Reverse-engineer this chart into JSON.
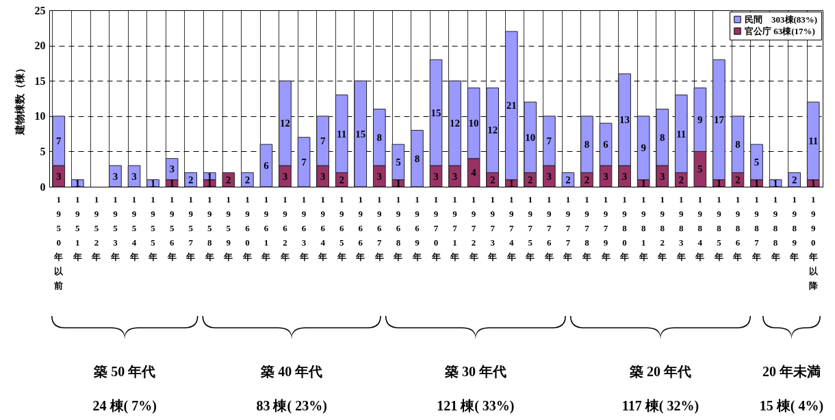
{
  "chart_data": {
    "type": "bar",
    "stacked": true,
    "ylabel": "建物棟数（棟）",
    "ylim": [
      0,
      25
    ],
    "yticks": [
      0,
      5,
      10,
      15,
      20,
      25
    ],
    "grid": true,
    "legend": "top right",
    "categories": [
      "1950年以前",
      "1951年",
      "1952年",
      "1953年",
      "1954年",
      "1955年",
      "1956年",
      "1957年",
      "1958年",
      "1959年",
      "1960年",
      "1961年",
      "1962年",
      "1963年",
      "1964年",
      "1965年",
      "1966年",
      "1967年",
      "1968年",
      "1969年",
      "1970年",
      "1971年",
      "1972年",
      "1973年",
      "1974年",
      "1975年",
      "1976年",
      "1977年",
      "1978年",
      "1979年",
      "1980年",
      "1981年",
      "1982年",
      "1983年",
      "1984年",
      "1985年",
      "1986年",
      "1987年",
      "1988年",
      "1989年",
      "1990年以降"
    ],
    "series": [
      {
        "name": "官公庁 63棟(17%)",
        "color": "#993366",
        "values": [
          3,
          0,
          0,
          0,
          0,
          0,
          1,
          0,
          1,
          2,
          0,
          0,
          3,
          0,
          3,
          2,
          0,
          3,
          1,
          0,
          3,
          3,
          4,
          2,
          1,
          2,
          3,
          0,
          2,
          3,
          3,
          1,
          3,
          2,
          5,
          1,
          2,
          1,
          0,
          0,
          1
        ],
        "value_labels": [
          "3",
          null,
          null,
          null,
          null,
          null,
          "1",
          null,
          "1",
          "2",
          null,
          null,
          "3",
          null,
          "3",
          "2",
          null,
          "3",
          "1",
          null,
          "3",
          "3",
          "4",
          "2",
          "1",
          "2",
          "3",
          null,
          "2",
          "3",
          "3",
          "1",
          "3",
          "2",
          "5",
          "1",
          "2",
          "1",
          null,
          null,
          "1"
        ]
      },
      {
        "name": "民間　303棟(83%)",
        "color": "#9999ff",
        "values": [
          7,
          1,
          0,
          3,
          3,
          1,
          3,
          2,
          1,
          0,
          2,
          6,
          12,
          7,
          7,
          11,
          15,
          8,
          5,
          8,
          15,
          12,
          10,
          12,
          21,
          10,
          7,
          2,
          8,
          6,
          13,
          9,
          8,
          11,
          9,
          17,
          8,
          5,
          1,
          2,
          11
        ],
        "value_labels": [
          "7",
          "1",
          null,
          "3",
          "3",
          "1",
          "3",
          "2",
          "1",
          null,
          "2",
          "6",
          "12",
          "7",
          "7",
          "11",
          "15",
          "8",
          "5",
          "8",
          "15",
          "12",
          "10",
          "12",
          "21",
          "10",
          "7",
          "2",
          "8",
          "6",
          "13",
          "9",
          "8",
          "11",
          "9",
          "17",
          "8",
          "5",
          "1",
          "2",
          "11"
        ]
      }
    ],
    "annotations": [
      "築 50 年代",
      "築 40 年代",
      "築 30 年代",
      "築 20 年代",
      "20 年未満",
      "24 棟( 7%)",
      "83 棟( 23%)",
      "121 棟( 33%)",
      "117 棟( 32%)",
      "15 棟( 4%)"
    ]
  }
}
